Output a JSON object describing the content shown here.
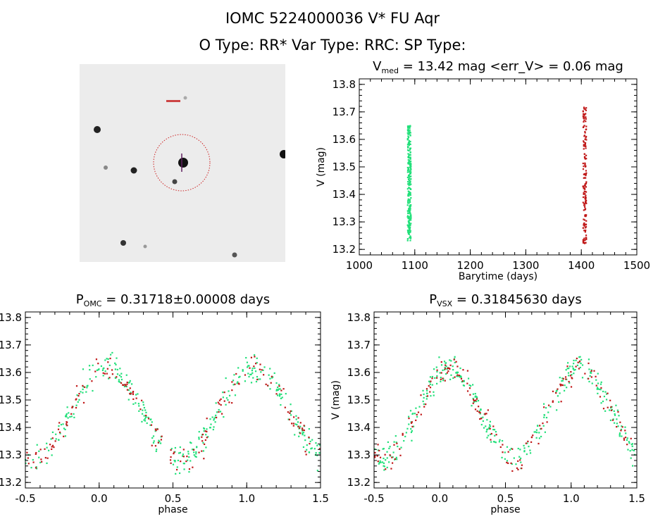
{
  "header": {
    "title": "IOMC 5224000036    V* FU Aqr",
    "subtitle": "O Type: RR*   Var Type: RRC:   SP Type:"
  },
  "colors": {
    "green": "#22e07a",
    "red": "#c01818",
    "circle": "#cc2222"
  },
  "chart_data": [
    {
      "type": "scatter",
      "title_main": "V",
      "title_sub": "med",
      "title_rest": " = 13.42 mag <err_V> = 0.06 mag",
      "xlabel": "Barytime (days)",
      "ylabel": "V (mag)",
      "xlim": [
        1000,
        1500
      ],
      "ylim": [
        13.82,
        13.18
      ],
      "xticks": [
        1000,
        1100,
        1200,
        1300,
        1400,
        1500
      ],
      "yticks": [
        "13.2",
        "13.3",
        "13.4",
        "13.5",
        "13.6",
        "13.7",
        "13.8"
      ],
      "series": [
        {
          "name": "green",
          "x_center": 1090,
          "y_range": [
            13.23,
            13.65
          ],
          "n": 260
        },
        {
          "name": "red",
          "x_center": 1406,
          "y_range": [
            13.22,
            13.72
          ],
          "n": 160
        }
      ]
    },
    {
      "type": "scatter",
      "title_main": "P",
      "title_sub": "OMC",
      "title_rest": " = 0.31718±0.00008 days",
      "xlabel": "phase",
      "ylabel": "V (mag)",
      "xlim": [
        -0.5,
        1.5
      ],
      "ylim": [
        13.82,
        13.18
      ],
      "xticks": [
        "-0.5",
        "0.0",
        "0.5",
        "1.0",
        "1.5"
      ],
      "yticks": [
        "13.2",
        "13.3",
        "13.4",
        "13.5",
        "13.6",
        "13.7",
        "13.8"
      ],
      "model": {
        "mean_mag": 13.45,
        "amplitude": 0.165,
        "phase_of_min": 0.05,
        "scatter": 0.05
      },
      "series": [
        {
          "name": "green",
          "n": 330,
          "seed": 3
        },
        {
          "name": "red",
          "n": 170,
          "seed": 7
        }
      ]
    },
    {
      "type": "scatter",
      "title_main": "P",
      "title_sub": "VSX",
      "title_rest": " = 0.31845630 days",
      "xlabel": "phase",
      "ylabel": "V (mag)",
      "xlim": [
        -0.5,
        1.5
      ],
      "ylim": [
        13.82,
        13.18
      ],
      "xticks": [
        "-0.5",
        "0.0",
        "0.5",
        "1.0",
        "1.5"
      ],
      "yticks": [
        "13.2",
        "13.3",
        "13.4",
        "13.5",
        "13.6",
        "13.7",
        "13.8"
      ],
      "model": {
        "mean_mag": 13.45,
        "amplitude": 0.165,
        "phase_of_min": 0.07,
        "scatter": 0.05
      },
      "series": [
        {
          "name": "green",
          "n": 330,
          "seed": 11
        },
        {
          "name": "red",
          "n": 170,
          "seed": 13
        }
      ]
    }
  ]
}
